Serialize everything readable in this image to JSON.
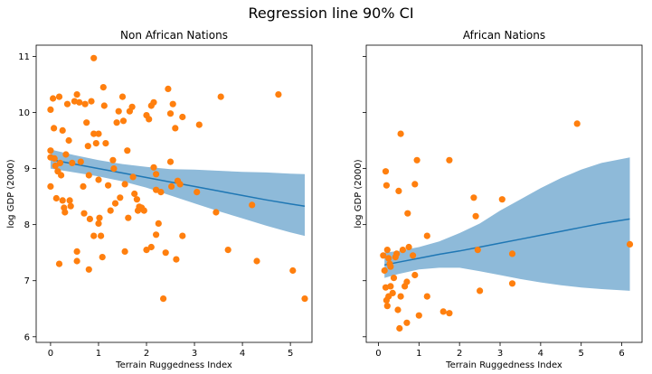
{
  "figure": {
    "suptitle": "Regression line 90% CI"
  },
  "colors": {
    "points": "#ff7f0e",
    "line": "#1f77b4",
    "band": "#8ebad9"
  },
  "chart_data": [
    {
      "type": "scatter",
      "title": "Non African Nations",
      "xlabel": "Terrain Ruggedness Index",
      "ylabel": "log GDP (2000)",
      "xlim": [
        -0.3,
        5.45
      ],
      "ylim": [
        5.9,
        11.2
      ],
      "xticks": [
        0,
        1,
        2,
        3,
        4,
        5
      ],
      "yticks": [
        6,
        7,
        8,
        9,
        10,
        11
      ],
      "show_ytick_labels": true,
      "regression": {
        "x": [
          0.0,
          0.5,
          1.0,
          1.5,
          2.0,
          2.5,
          3.0,
          3.5,
          4.0,
          4.5,
          5.0,
          5.3
        ],
        "mean": [
          9.16,
          9.08,
          9.0,
          8.92,
          8.84,
          8.76,
          8.68,
          8.6,
          8.52,
          8.44,
          8.37,
          8.33
        ],
        "lower": [
          9.0,
          8.93,
          8.86,
          8.77,
          8.66,
          8.52,
          8.38,
          8.24,
          8.11,
          7.98,
          7.86,
          7.8
        ],
        "upper": [
          9.34,
          9.24,
          9.15,
          9.08,
          9.03,
          8.99,
          8.98,
          8.96,
          8.94,
          8.93,
          8.91,
          8.9
        ]
      },
      "points": [
        [
          0.0,
          10.05
        ],
        [
          0.05,
          10.25
        ],
        [
          0.07,
          9.72
        ],
        [
          0.0,
          9.32
        ],
        [
          0.0,
          9.2
        ],
        [
          0.08,
          9.18
        ],
        [
          0.1,
          9.05
        ],
        [
          0.15,
          8.95
        ],
        [
          0.2,
          9.1
        ],
        [
          0.0,
          8.68
        ],
        [
          0.12,
          8.47
        ],
        [
          0.18,
          10.28
        ],
        [
          0.25,
          9.68
        ],
        [
          0.22,
          8.88
        ],
        [
          0.25,
          8.43
        ],
        [
          0.28,
          8.3
        ],
        [
          0.3,
          8.22
        ],
        [
          0.32,
          9.25
        ],
        [
          0.35,
          10.15
        ],
        [
          0.38,
          9.5
        ],
        [
          0.4,
          8.43
        ],
        [
          0.42,
          8.33
        ],
        [
          0.45,
          9.1
        ],
        [
          0.18,
          7.3
        ],
        [
          0.5,
          10.2
        ],
        [
          0.55,
          10.32
        ],
        [
          0.6,
          10.18
        ],
        [
          0.63,
          9.12
        ],
        [
          0.68,
          8.68
        ],
        [
          0.7,
          8.2
        ],
        [
          0.72,
          10.15
        ],
        [
          0.75,
          9.82
        ],
        [
          0.78,
          9.4
        ],
        [
          0.8,
          8.88
        ],
        [
          0.82,
          8.1
        ],
        [
          0.85,
          10.2
        ],
        [
          0.9,
          9.62
        ],
        [
          0.9,
          7.8
        ],
        [
          0.55,
          7.35
        ],
        [
          0.55,
          7.52
        ],
        [
          0.8,
          7.2
        ],
        [
          0.9,
          10.97
        ],
        [
          0.95,
          9.45
        ],
        [
          1.0,
          9.62
        ],
        [
          1.0,
          8.8
        ],
        [
          1.02,
          8.12
        ],
        [
          1.0,
          8.02
        ],
        [
          1.05,
          7.8
        ],
        [
          1.08,
          7.42
        ],
        [
          1.1,
          10.45
        ],
        [
          1.12,
          10.12
        ],
        [
          1.15,
          9.45
        ],
        [
          1.2,
          8.7
        ],
        [
          1.25,
          8.25
        ],
        [
          1.3,
          9.15
        ],
        [
          1.32,
          9.0
        ],
        [
          1.35,
          8.38
        ],
        [
          1.38,
          9.82
        ],
        [
          1.42,
          10.02
        ],
        [
          1.45,
          8.48
        ],
        [
          1.5,
          10.28
        ],
        [
          1.52,
          9.85
        ],
        [
          1.55,
          8.72
        ],
        [
          1.55,
          7.52
        ],
        [
          1.6,
          9.32
        ],
        [
          1.62,
          8.12
        ],
        [
          1.65,
          10.02
        ],
        [
          1.7,
          10.1
        ],
        [
          1.72,
          8.85
        ],
        [
          1.75,
          8.55
        ],
        [
          1.8,
          8.45
        ],
        [
          1.82,
          8.25
        ],
        [
          1.85,
          8.32
        ],
        [
          1.9,
          8.3
        ],
        [
          1.95,
          8.25
        ],
        [
          2.0,
          9.95
        ],
        [
          2.05,
          9.88
        ],
        [
          2.1,
          10.12
        ],
        [
          2.15,
          10.18
        ],
        [
          2.15,
          9.02
        ],
        [
          2.2,
          8.9
        ],
        [
          2.2,
          8.62
        ],
        [
          2.25,
          8.02
        ],
        [
          2.3,
          8.58
        ],
        [
          2.35,
          6.68
        ],
        [
          2.4,
          7.5
        ],
        [
          2.45,
          10.42
        ],
        [
          2.5,
          9.98
        ],
        [
          2.5,
          9.12
        ],
        [
          2.52,
          8.68
        ],
        [
          2.55,
          10.15
        ],
        [
          2.6,
          9.72
        ],
        [
          2.62,
          7.38
        ],
        [
          2.65,
          8.78
        ],
        [
          2.7,
          8.72
        ],
        [
          2.75,
          7.8
        ],
        [
          2.75,
          9.92
        ],
        [
          2.2,
          7.82
        ],
        [
          2.1,
          7.6
        ],
        [
          2.0,
          7.55
        ],
        [
          3.05,
          8.58
        ],
        [
          3.1,
          9.78
        ],
        [
          3.45,
          8.22
        ],
        [
          3.55,
          10.28
        ],
        [
          3.7,
          7.55
        ],
        [
          4.2,
          8.35
        ],
        [
          4.3,
          7.35
        ],
        [
          4.75,
          10.32
        ],
        [
          5.05,
          7.18
        ],
        [
          5.3,
          6.68
        ]
      ]
    },
    {
      "type": "scatter",
      "title": "African Nations",
      "xlabel": "Terrain Ruggedness Index",
      "ylabel": "log GDP (2000)",
      "xlim": [
        -0.3,
        6.5
      ],
      "ylim": [
        5.9,
        11.2
      ],
      "xticks": [
        0,
        1,
        2,
        3,
        4,
        5,
        6
      ],
      "yticks": [
        6,
        7,
        8,
        9,
        10,
        11
      ],
      "show_ytick_labels": false,
      "regression": {
        "x": [
          0.15,
          0.5,
          1.0,
          1.5,
          2.0,
          2.5,
          3.0,
          3.5,
          4.0,
          4.5,
          5.0,
          5.5,
          6.2
        ],
        "mean": [
          7.28,
          7.33,
          7.4,
          7.47,
          7.53,
          7.6,
          7.67,
          7.74,
          7.81,
          7.88,
          7.95,
          8.02,
          8.1
        ],
        "lower": [
          7.05,
          7.12,
          7.2,
          7.23,
          7.23,
          7.17,
          7.1,
          7.03,
          6.97,
          6.92,
          6.88,
          6.85,
          6.82
        ],
        "upper": [
          7.5,
          7.53,
          7.6,
          7.7,
          7.85,
          8.02,
          8.25,
          8.45,
          8.65,
          8.83,
          8.98,
          9.1,
          9.2
        ]
      },
      "points": [
        [
          0.12,
          7.45
        ],
        [
          0.15,
          7.18
        ],
        [
          0.18,
          8.95
        ],
        [
          0.2,
          8.7
        ],
        [
          0.22,
          7.55
        ],
        [
          0.25,
          7.4
        ],
        [
          0.28,
          7.3
        ],
        [
          0.3,
          7.25
        ],
        [
          0.18,
          6.88
        ],
        [
          0.2,
          6.65
        ],
        [
          0.22,
          6.55
        ],
        [
          0.25,
          6.72
        ],
        [
          0.3,
          6.9
        ],
        [
          0.35,
          6.78
        ],
        [
          0.38,
          7.05
        ],
        [
          0.42,
          7.42
        ],
        [
          0.45,
          7.48
        ],
        [
          0.48,
          6.48
        ],
        [
          0.5,
          8.6
        ],
        [
          0.52,
          6.15
        ],
        [
          0.55,
          9.62
        ],
        [
          0.55,
          6.72
        ],
        [
          0.6,
          7.55
        ],
        [
          0.65,
          6.9
        ],
        [
          0.7,
          6.98
        ],
        [
          0.7,
          6.25
        ],
        [
          0.72,
          8.2
        ],
        [
          0.75,
          7.6
        ],
        [
          0.85,
          7.45
        ],
        [
          0.9,
          7.1
        ],
        [
          0.9,
          8.72
        ],
        [
          0.95,
          9.15
        ],
        [
          1.0,
          6.38
        ],
        [
          1.2,
          6.72
        ],
        [
          1.2,
          7.8
        ],
        [
          1.6,
          6.45
        ],
        [
          1.75,
          6.42
        ],
        [
          1.75,
          9.15
        ],
        [
          2.35,
          8.48
        ],
        [
          2.4,
          8.15
        ],
        [
          2.45,
          7.55
        ],
        [
          2.5,
          6.82
        ],
        [
          3.05,
          8.45
        ],
        [
          3.3,
          7.48
        ],
        [
          3.3,
          6.95
        ],
        [
          4.9,
          9.8
        ],
        [
          6.2,
          7.65
        ]
      ]
    }
  ]
}
